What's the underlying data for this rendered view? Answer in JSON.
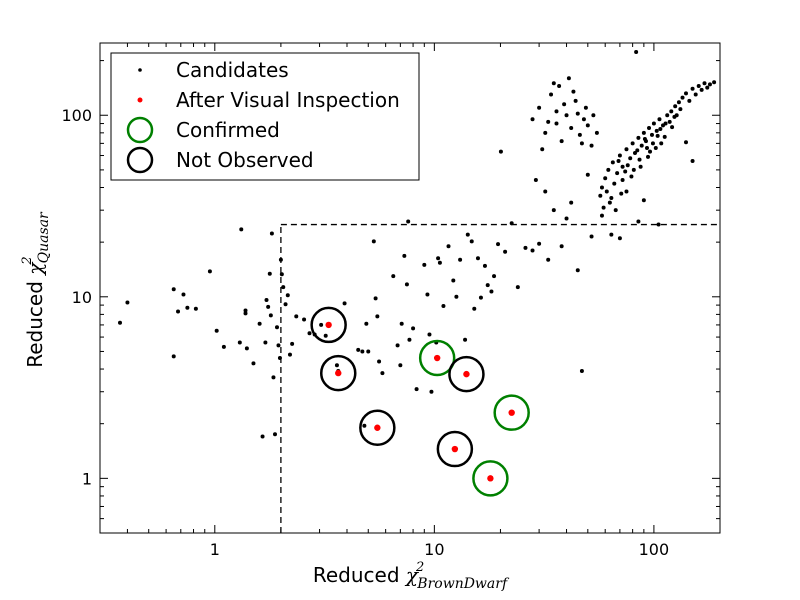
{
  "chart_data": {
    "type": "scatter",
    "x_scale": "log",
    "y_scale": "log",
    "xlim": [
      0.3,
      200
    ],
    "ylim": [
      0.5,
      250
    ],
    "xlabel": {
      "prefix": "Reduced ",
      "symbol": "χ",
      "sup": "2",
      "sub": "BrownDwarf"
    },
    "ylabel": {
      "prefix": "Reduced ",
      "symbol": "χ",
      "sup": "2",
      "sub": "Quasar"
    },
    "x_ticks": [
      {
        "value": 1,
        "label": "1"
      },
      {
        "value": 10,
        "label": "10"
      },
      {
        "value": 100,
        "label": "100"
      }
    ],
    "y_ticks": [
      {
        "value": 1,
        "label": "1"
      },
      {
        "value": 10,
        "label": "10"
      },
      {
        "value": 100,
        "label": "100"
      }
    ],
    "cut_lines": {
      "x": 2,
      "y": 25
    },
    "legend": {
      "placement": "upper-left",
      "entries": [
        {
          "label": "Candidates",
          "marker": "small-dot",
          "color": "#000000"
        },
        {
          "label": "After Visual Inspection",
          "marker": "small-dot",
          "color": "#ff0000"
        },
        {
          "label": "Confirmed",
          "marker": "ring",
          "color": "#008000"
        },
        {
          "label": "Not Observed",
          "marker": "ring",
          "color": "#000000"
        }
      ]
    },
    "series": [
      {
        "name": "Candidates",
        "color": "#000000",
        "points": [
          [
            0.37,
            7.2
          ],
          [
            0.4,
            9.3
          ],
          [
            0.65,
            4.7
          ],
          [
            0.65,
            11.0
          ],
          [
            0.68,
            8.3
          ],
          [
            0.72,
            10.3
          ],
          [
            0.75,
            8.7
          ],
          [
            0.82,
            8.6
          ],
          [
            0.95,
            13.8
          ],
          [
            1.02,
            6.5
          ],
          [
            1.1,
            5.3
          ],
          [
            1.3,
            5.6
          ],
          [
            1.32,
            23.5
          ],
          [
            1.38,
            8.4
          ],
          [
            1.38,
            8.1
          ],
          [
            1.4,
            5.2
          ],
          [
            1.5,
            4.3
          ],
          [
            1.6,
            7.1
          ],
          [
            1.65,
            1.7
          ],
          [
            1.7,
            5.6
          ],
          [
            1.72,
            9.6
          ],
          [
            1.75,
            8.8
          ],
          [
            1.78,
            13.4
          ],
          [
            1.8,
            7.9
          ],
          [
            1.82,
            22.3
          ],
          [
            1.85,
            3.6
          ],
          [
            1.88,
            1.75
          ],
          [
            1.92,
            6.8
          ],
          [
            1.95,
            5.4
          ],
          [
            1.98,
            4.6
          ],
          [
            2.0,
            16.0
          ],
          [
            2.02,
            13.3
          ],
          [
            2.05,
            11.3
          ],
          [
            2.1,
            9.1
          ],
          [
            2.15,
            10.2
          ],
          [
            2.2,
            4.8
          ],
          [
            2.25,
            5.5
          ],
          [
            2.35,
            7.8
          ],
          [
            2.55,
            7.5
          ],
          [
            2.7,
            6.3
          ],
          [
            2.85,
            6.2
          ],
          [
            3.05,
            7.0
          ],
          [
            3.2,
            6.1
          ],
          [
            3.6,
            4.2
          ],
          [
            3.65,
            3.9
          ],
          [
            3.9,
            9.2
          ],
          [
            4.5,
            5.1
          ],
          [
            4.7,
            5.0
          ],
          [
            4.8,
            1.95
          ],
          [
            4.9,
            7.1
          ],
          [
            5.0,
            5.0
          ],
          [
            5.3,
            20.2
          ],
          [
            5.4,
            9.8
          ],
          [
            5.5,
            7.8
          ],
          [
            5.6,
            4.4
          ],
          [
            5.8,
            3.8
          ],
          [
            6.5,
            13.0
          ],
          [
            6.8,
            5.4
          ],
          [
            7.0,
            4.2
          ],
          [
            7.1,
            7.1
          ],
          [
            7.3,
            16.8
          ],
          [
            7.5,
            11.7
          ],
          [
            7.6,
            26.0
          ],
          [
            7.7,
            5.8
          ],
          [
            8.0,
            6.7
          ],
          [
            8.3,
            3.1
          ],
          [
            9.0,
            15.0
          ],
          [
            9.3,
            10.3
          ],
          [
            9.5,
            6.2
          ],
          [
            9.7,
            3.0
          ],
          [
            10.2,
            5.6
          ],
          [
            10.4,
            16.3
          ],
          [
            10.6,
            15.4
          ],
          [
            11.0,
            8.9
          ],
          [
            11.6,
            19.0
          ],
          [
            12.2,
            12.3
          ],
          [
            12.6,
            10.0
          ],
          [
            13.1,
            16.0
          ],
          [
            13.8,
            5.8
          ],
          [
            14.2,
            22.0
          ],
          [
            14.8,
            20.2
          ],
          [
            15.2,
            8.6
          ],
          [
            15.8,
            16.3
          ],
          [
            16.3,
            9.9
          ],
          [
            17.0,
            14.8
          ],
          [
            17.5,
            11.6
          ],
          [
            18.2,
            10.7
          ],
          [
            18.7,
            13.0
          ],
          [
            19.5,
            19.5
          ],
          [
            20.1,
            63.0
          ],
          [
            21.0,
            17.7
          ],
          [
            22.5,
            25.4
          ],
          [
            24.0,
            11.3
          ],
          [
            26.0,
            18.6
          ],
          [
            28.0,
            18.0
          ],
          [
            29.0,
            44.0
          ],
          [
            30.0,
            19.6
          ],
          [
            32.0,
            38.0
          ],
          [
            33.0,
            16.0
          ],
          [
            35.0,
            30.0
          ],
          [
            38.0,
            19.0
          ],
          [
            40.0,
            27.0
          ],
          [
            42.0,
            33.0
          ],
          [
            45.0,
            14.0
          ],
          [
            47.0,
            3.9
          ],
          [
            50.0,
            47.0
          ],
          [
            52.0,
            21.5
          ],
          [
            58.0,
            28.0
          ],
          [
            64.0,
            22.0
          ],
          [
            70.0,
            21.0
          ],
          [
            75.0,
            38.0
          ],
          [
            85.0,
            26.0
          ],
          [
            90.0,
            34.0
          ],
          [
            105.0,
            25.0
          ],
          [
            140.0,
            71.0
          ],
          [
            150.0,
            56.0
          ],
          [
            83.0,
            223.0
          ],
          [
            28.0,
            95.0
          ],
          [
            30.0,
            110.0
          ],
          [
            32.0,
            80.0
          ],
          [
            34.0,
            130.0
          ],
          [
            36.0,
            90.0
          ],
          [
            38.0,
            72.0
          ],
          [
            40.0,
            100.0
          ],
          [
            42.0,
            85.0
          ],
          [
            44.0,
            120.0
          ],
          [
            46.0,
            78.0
          ],
          [
            48.0,
            95.0
          ],
          [
            50.0,
            88.0
          ],
          [
            52.0,
            68.0
          ],
          [
            35.0,
            150.0
          ],
          [
            37.0,
            145.0
          ],
          [
            45.0,
            102.0
          ],
          [
            49.0,
            110.0
          ],
          [
            41.0,
            160.0
          ],
          [
            55.0,
            80.0
          ],
          [
            31.0,
            65.0
          ],
          [
            33.0,
            92.0
          ],
          [
            39.0,
            115.0
          ],
          [
            47.0,
            70.0
          ],
          [
            53.0,
            100.0
          ],
          [
            36.0,
            105.0
          ],
          [
            43.0,
            135.0
          ],
          [
            58.0,
            40.0
          ],
          [
            60.0,
            45.0
          ],
          [
            62.0,
            50.0
          ],
          [
            65.0,
            55.0
          ],
          [
            68.0,
            48.0
          ],
          [
            70.0,
            60.0
          ],
          [
            72.0,
            52.0
          ],
          [
            75.0,
            65.0
          ],
          [
            78.0,
            58.0
          ],
          [
            80.0,
            70.0
          ],
          [
            82.0,
            62.0
          ],
          [
            85.0,
            75.0
          ],
          [
            88.0,
            68.0
          ],
          [
            90.0,
            80.0
          ],
          [
            92.0,
            72.0
          ],
          [
            95.0,
            85.0
          ],
          [
            98.0,
            78.0
          ],
          [
            100.0,
            90.0
          ],
          [
            103.0,
            82.0
          ],
          [
            106.0,
            95.0
          ],
          [
            110.0,
            88.0
          ],
          [
            115.0,
            100.0
          ],
          [
            120.0,
            105.0
          ],
          [
            125.0,
            112.0
          ],
          [
            130.0,
            118.0
          ],
          [
            135.0,
            125.0
          ],
          [
            140.0,
            132.0
          ],
          [
            150.0,
            140.0
          ],
          [
            160.0,
            145.0
          ],
          [
            170.0,
            150.0
          ],
          [
            180.0,
            148.0
          ],
          [
            188.0,
            152.0
          ],
          [
            66.0,
            42.0
          ],
          [
            74.0,
            49.0
          ],
          [
            86.0,
            57.0
          ],
          [
            96.0,
            63.0
          ],
          [
            108.0,
            70.0
          ],
          [
            64.0,
            35.0
          ],
          [
            61.0,
            38.0
          ],
          [
            72.0,
            44.0
          ],
          [
            79.0,
            46.0
          ],
          [
            87.0,
            52.0
          ],
          [
            94.0,
            59.0
          ],
          [
            102.0,
            66.0
          ],
          [
            112.0,
            76.0
          ],
          [
            118.0,
            92.0
          ],
          [
            124.0,
            98.0
          ],
          [
            132.0,
            108.0
          ],
          [
            76.0,
            53.0
          ],
          [
            84.0,
            64.0
          ],
          [
            91.0,
            74.0
          ],
          [
            99.0,
            70.0
          ],
          [
            104.0,
            77.0
          ],
          [
            69.0,
            56.0
          ],
          [
            81.0,
            50.0
          ],
          [
            93.0,
            66.0
          ],
          [
            107.0,
            84.0
          ],
          [
            113.0,
            90.0
          ],
          [
            121.0,
            86.0
          ],
          [
            127.0,
            100.0
          ],
          [
            145.0,
            120.0
          ],
          [
            155.0,
            130.0
          ],
          [
            165.0,
            138.0
          ],
          [
            175.0,
            142.0
          ],
          [
            63.0,
            33.0
          ],
          [
            67.0,
            30.0
          ],
          [
            71.0,
            37.0
          ],
          [
            57.0,
            36.0
          ],
          [
            59.0,
            31.0
          ]
        ]
      },
      {
        "name": "After Visual Inspection",
        "color": "#ff0000",
        "points": [
          [
            3.3,
            7.0
          ],
          [
            3.65,
            3.8
          ],
          [
            5.5,
            1.9
          ],
          [
            10.3,
            4.6
          ],
          [
            12.4,
            1.45
          ],
          [
            14.0,
            3.75
          ],
          [
            18.0,
            1.0
          ],
          [
            22.5,
            2.3
          ]
        ]
      },
      {
        "name": "Confirmed",
        "color": "#008000",
        "points": [
          [
            10.3,
            4.6
          ],
          [
            18.0,
            1.0
          ],
          [
            22.5,
            2.3
          ]
        ]
      },
      {
        "name": "Not Observed",
        "color": "#000000",
        "points": [
          [
            3.3,
            7.0
          ],
          [
            3.65,
            3.8
          ],
          [
            5.5,
            1.9
          ],
          [
            12.4,
            1.45
          ],
          [
            14.0,
            3.75
          ]
        ]
      }
    ]
  }
}
